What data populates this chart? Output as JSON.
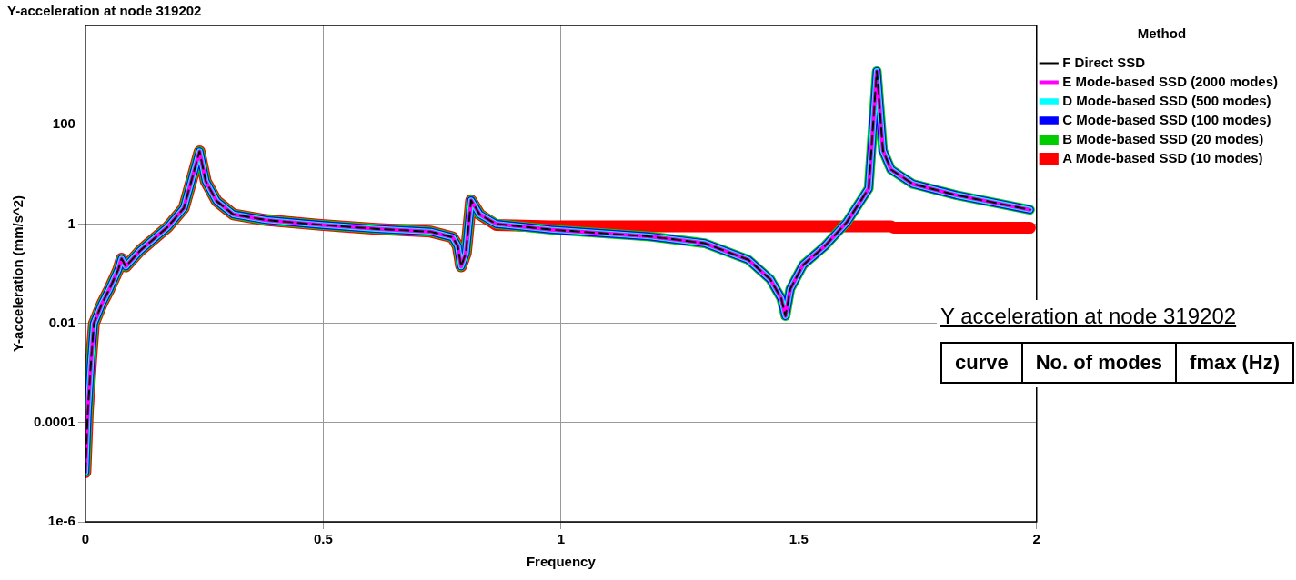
{
  "chart_data": {
    "type": "line",
    "title": "Y-acceleration at node 319202",
    "xlabel": "Frequency",
    "ylabel": "Y-acceleration (mm/s^2)",
    "legend_title": "Method",
    "x": [
      0,
      0.005,
      0.012,
      0.018,
      0.035,
      0.051,
      0.069,
      0.076,
      0.085,
      0.115,
      0.173,
      0.207,
      0.24,
      0.253,
      0.276,
      0.311,
      0.38,
      0.495,
      0.61,
      0.726,
      0.772,
      0.783,
      0.79,
      0.8,
      0.811,
      0.829,
      0.864,
      0.979,
      1.187,
      1.302,
      1.394,
      1.44,
      1.463,
      1.472,
      1.482,
      1.509,
      1.555,
      1.601,
      1.647,
      1.664,
      1.677,
      1.694,
      1.74,
      1.832,
      1.986
    ],
    "series": [
      {
        "name": "A Mode-based SSD (10 modes)",
        "color": "#ff0000",
        "x": [
          0,
          0.005,
          0.012,
          0.018,
          0.035,
          0.051,
          0.069,
          0.076,
          0.085,
          0.115,
          0.173,
          0.207,
          0.24,
          0.253,
          0.276,
          0.311,
          0.38,
          0.495,
          0.61,
          0.726,
          0.772,
          0.783,
          0.79,
          0.8,
          0.811,
          0.829,
          0.864,
          0.979,
          1.694,
          1.7,
          1.986
        ],
        "values": [
          1e-05,
          0.00016,
          0.0018,
          0.01,
          0.025,
          0.05,
          0.12,
          0.2,
          0.14,
          0.29,
          0.87,
          2.1,
          29,
          7.3,
          2.9,
          1.56,
          1.2,
          0.96,
          0.8,
          0.7,
          0.54,
          0.36,
          0.14,
          0.26,
          3.0,
          1.56,
          0.95,
          0.9,
          0.9,
          0.84,
          0.84
        ]
      },
      {
        "name": "B Mode-based SSD (20 modes)",
        "color": "#00cc00",
        "values": [
          1e-05,
          0.00016,
          0.0018,
          0.01,
          0.025,
          0.05,
          0.12,
          0.2,
          0.14,
          0.29,
          0.87,
          2.1,
          29,
          7.3,
          2.9,
          1.56,
          1.2,
          0.96,
          0.8,
          0.7,
          0.54,
          0.36,
          0.14,
          0.26,
          3.0,
          1.56,
          1.0,
          0.77,
          0.56,
          0.41,
          0.19,
          0.077,
          0.032,
          0.014,
          0.049,
          0.15,
          0.36,
          1.09,
          5.2,
          1200,
          30,
          12.5,
          6.4,
          3.8,
          1.94
        ]
      },
      {
        "name": "C Mode-based SSD (100 modes)",
        "color": "#0000ff",
        "values": [
          1e-05,
          0.00016,
          0.0018,
          0.01,
          0.025,
          0.05,
          0.12,
          0.2,
          0.14,
          0.29,
          0.87,
          2.1,
          29,
          7.3,
          2.9,
          1.56,
          1.2,
          0.96,
          0.8,
          0.7,
          0.54,
          0.36,
          0.14,
          0.26,
          3.0,
          1.56,
          1.0,
          0.77,
          0.56,
          0.41,
          0.19,
          0.077,
          0.032,
          0.014,
          0.049,
          0.15,
          0.36,
          1.09,
          5.2,
          1200,
          30,
          12.5,
          6.4,
          3.8,
          1.94
        ]
      },
      {
        "name": "D Mode-based SSD (500 modes)",
        "color": "#00ffff",
        "values": [
          1e-05,
          0.00016,
          0.0018,
          0.01,
          0.025,
          0.05,
          0.12,
          0.2,
          0.14,
          0.29,
          0.87,
          2.1,
          29,
          7.3,
          2.9,
          1.56,
          1.2,
          0.96,
          0.8,
          0.7,
          0.54,
          0.36,
          0.14,
          0.26,
          3.0,
          1.56,
          1.0,
          0.77,
          0.56,
          0.41,
          0.19,
          0.077,
          0.032,
          0.014,
          0.049,
          0.15,
          0.36,
          1.09,
          5.2,
          1200,
          30,
          12.5,
          6.4,
          3.8,
          1.94
        ]
      },
      {
        "name": "E Mode-based SSD (2000 modes)",
        "color": "#ff00ff",
        "values": [
          1e-05,
          0.00016,
          0.0018,
          0.01,
          0.025,
          0.05,
          0.12,
          0.2,
          0.14,
          0.29,
          0.87,
          2.1,
          29,
          7.3,
          2.9,
          1.56,
          1.2,
          0.96,
          0.8,
          0.7,
          0.54,
          0.36,
          0.14,
          0.26,
          3.0,
          1.56,
          1.0,
          0.77,
          0.56,
          0.41,
          0.19,
          0.077,
          0.032,
          0.014,
          0.049,
          0.15,
          0.36,
          1.09,
          5.2,
          1200,
          30,
          12.5,
          6.4,
          3.8,
          1.94
        ]
      },
      {
        "name": "F Direct SSD",
        "color": "#000000",
        "line_style": "dashed",
        "values": [
          1e-05,
          0.00016,
          0.0018,
          0.01,
          0.025,
          0.05,
          0.12,
          0.2,
          0.14,
          0.29,
          0.87,
          2.1,
          29,
          7.3,
          2.9,
          1.56,
          1.2,
          0.96,
          0.8,
          0.7,
          0.54,
          0.36,
          0.14,
          0.26,
          3.0,
          1.56,
          1.0,
          0.77,
          0.56,
          0.41,
          0.19,
          0.077,
          0.032,
          0.014,
          0.049,
          0.15,
          0.36,
          1.09,
          5.2,
          1200,
          30,
          12.5,
          6.4,
          3.8,
          1.94
        ]
      }
    ],
    "xlim": [
      0,
      2
    ],
    "xticks": [
      0,
      0.5,
      1,
      1.5,
      2
    ],
    "log": "y",
    "ylim": [
      1e-06,
      10000
    ],
    "yticks": [
      {
        "value": 1e-06,
        "label": "1e-6"
      },
      0.0001,
      0.01,
      1,
      100
    ],
    "grid": true,
    "legend": "top right",
    "marker": "none",
    "line_style": "solid",
    "annotations": [
      "Y acceleration at node 319202",
      "curve",
      "No. of modes",
      "fmax (Hz)"
    ]
  }
}
